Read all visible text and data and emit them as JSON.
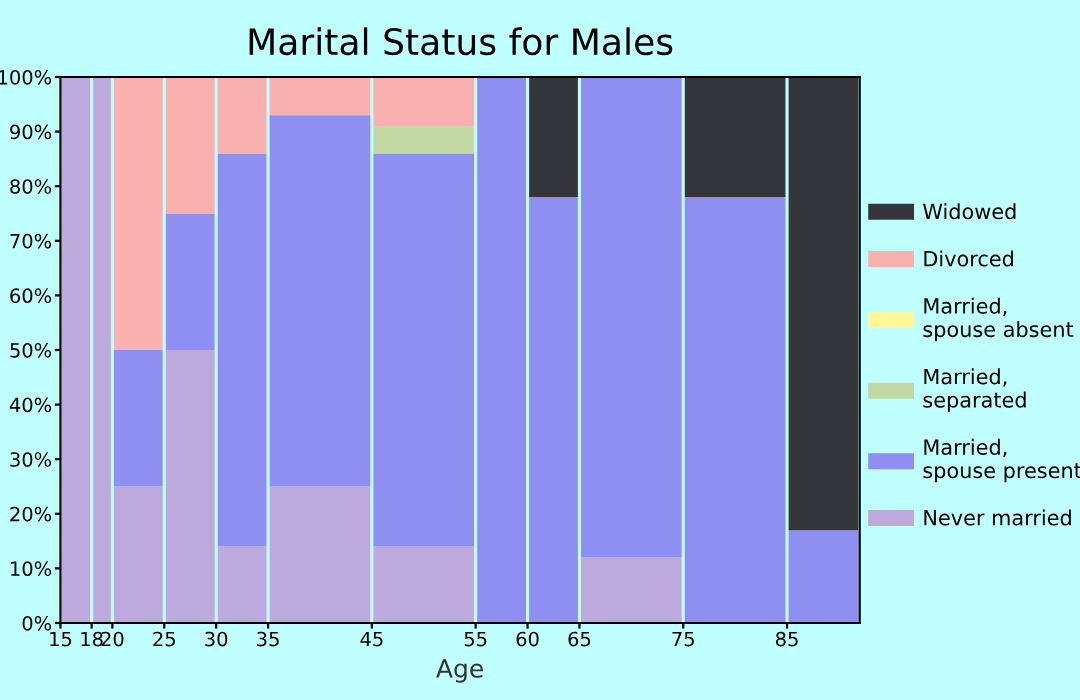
{
  "chart_data": {
    "type": "bar",
    "stacked": true,
    "title": "Marital Status for Males",
    "xlabel": "Age",
    "x": [
      16.5,
      19,
      22.5,
      27.5,
      32.5,
      40,
      50,
      57.5,
      62.5,
      70,
      80,
      88.5
    ],
    "xlim": [
      15,
      92
    ],
    "xticks": [
      15,
      18,
      20,
      25,
      30,
      35,
      45,
      55,
      60,
      65,
      75,
      85
    ],
    "ylim": [
      0,
      100
    ],
    "yticks": [
      {
        "value": 0,
        "label": "0%"
      },
      {
        "value": 10,
        "label": "10%"
      },
      {
        "value": 20,
        "label": "20%"
      },
      {
        "value": 30,
        "label": "30%"
      },
      {
        "value": 40,
        "label": "40%"
      },
      {
        "value": 50,
        "label": "50%"
      },
      {
        "value": 60,
        "label": "60%"
      },
      {
        "value": 70,
        "label": "70%"
      },
      {
        "value": 80,
        "label": "80%"
      },
      {
        "value": 90,
        "label": "90%"
      },
      {
        "value": 100,
        "label": "100%"
      }
    ],
    "grid": false,
    "legend": "right",
    "series": [
      {
        "name": "Never married",
        "color": "#bda9db",
        "values": [
          100,
          100,
          25,
          50,
          14,
          25,
          14,
          0,
          0,
          12,
          0,
          0
        ]
      },
      {
        "name": "Married,\nspouse present",
        "color": "#8f8ff2",
        "values": [
          0,
          0,
          25,
          25,
          72,
          68,
          72,
          100,
          78,
          88,
          78,
          17
        ]
      },
      {
        "name": "Married,\nseparated",
        "color": "#c2d9a3",
        "values": [
          0,
          0,
          0,
          0,
          0,
          0,
          5,
          0,
          0,
          0,
          0,
          0
        ]
      },
      {
        "name": "Married,\nspouse absent",
        "color": "#fff799",
        "values": [
          0,
          0,
          0,
          0,
          0,
          0,
          0,
          0,
          0,
          0,
          0,
          0
        ]
      },
      {
        "name": "Divorced",
        "color": "#f8b1ae",
        "values": [
          0,
          0,
          50,
          25,
          14,
          7,
          9,
          0,
          0,
          0,
          0,
          0
        ]
      },
      {
        "name": "Widowed",
        "color": "#35363b",
        "values": [
          0,
          0,
          0,
          0,
          0,
          0,
          0,
          0,
          22,
          0,
          22,
          83
        ]
      }
    ]
  }
}
